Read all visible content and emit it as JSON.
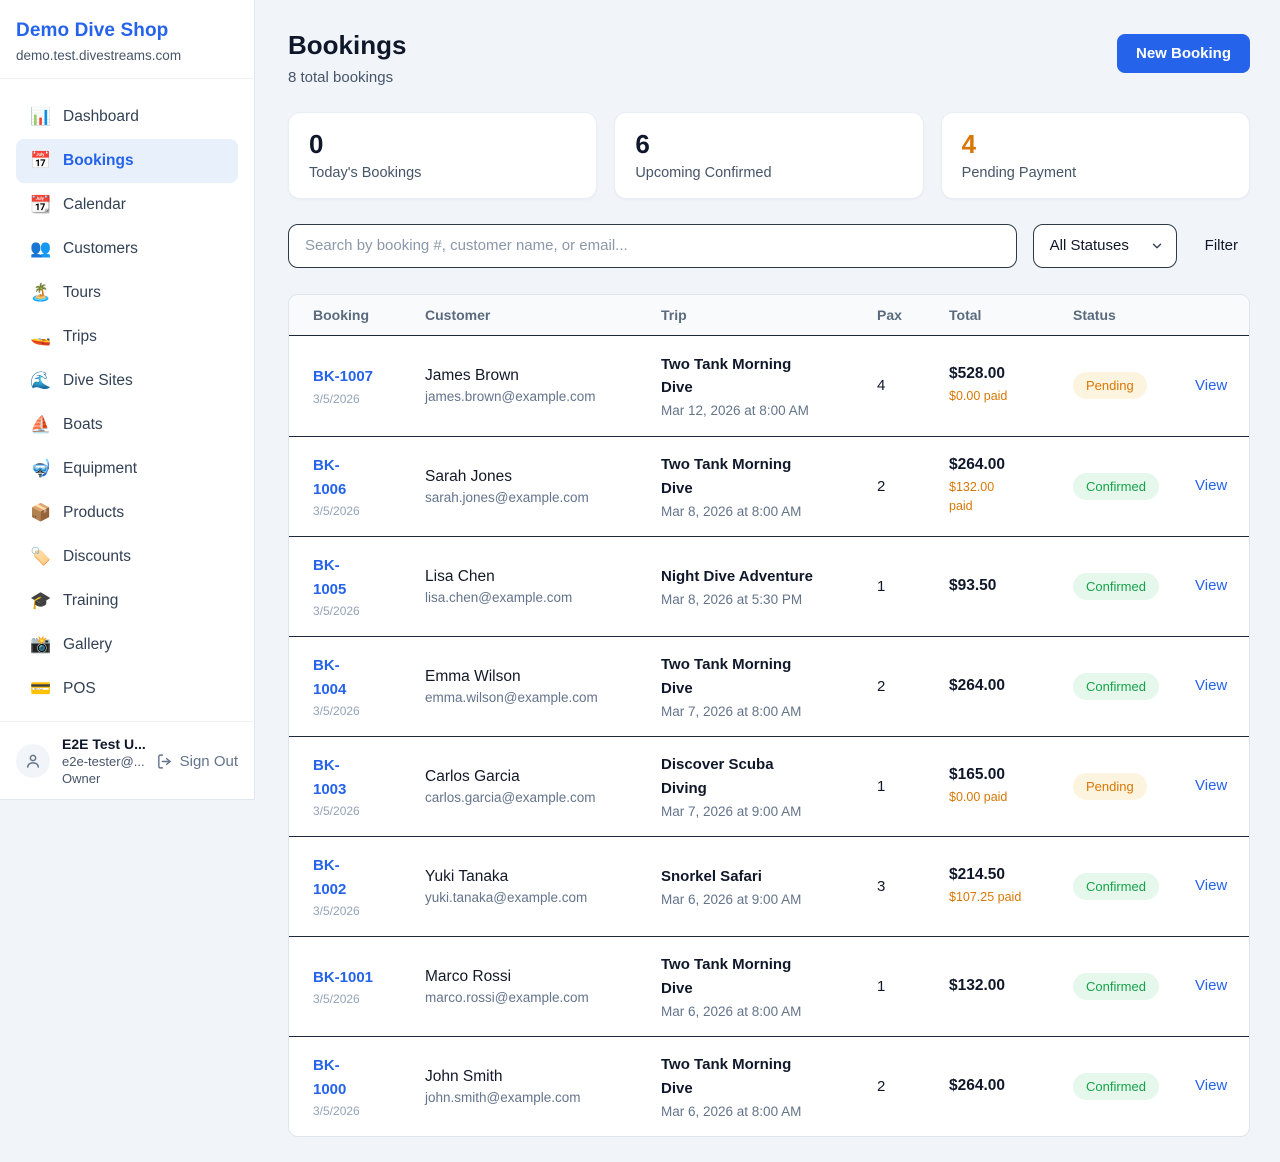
{
  "sidebar": {
    "brand": {
      "name": "Demo Dive Shop",
      "domain": "demo.test.divestreams.com"
    },
    "nav": [
      {
        "icon": "bar-chart-icon",
        "emoji": "📊",
        "label": "Dashboard",
        "active": false
      },
      {
        "icon": "calendar-icon",
        "emoji": "📅",
        "label": "Bookings",
        "active": true
      },
      {
        "icon": "tear-off-calendar-icon",
        "emoji": "📆",
        "label": "Calendar",
        "active": false
      },
      {
        "icon": "people-icon",
        "emoji": "👥",
        "label": "Customers",
        "active": false
      },
      {
        "icon": "island-icon",
        "emoji": "🏝️",
        "label": "Tours",
        "active": false
      },
      {
        "icon": "speedboat-icon",
        "emoji": "🚤",
        "label": "Trips",
        "active": false
      },
      {
        "icon": "wave-icon",
        "emoji": "🌊",
        "label": "Dive Sites",
        "active": false
      },
      {
        "icon": "sailboat-icon",
        "emoji": "⛵",
        "label": "Boats",
        "active": false
      },
      {
        "icon": "diving-mask-icon",
        "emoji": "🤿",
        "label": "Equipment",
        "active": false
      },
      {
        "icon": "package-icon",
        "emoji": "📦",
        "label": "Products",
        "active": false
      },
      {
        "icon": "tag-icon",
        "emoji": "🏷️",
        "label": "Discounts",
        "active": false
      },
      {
        "icon": "graduation-cap-icon",
        "emoji": "🎓",
        "label": "Training",
        "active": false
      },
      {
        "icon": "camera-icon",
        "emoji": "📸",
        "label": "Gallery",
        "active": false
      },
      {
        "icon": "credit-card-icon",
        "emoji": "💳",
        "label": "POS",
        "active": false
      }
    ],
    "user": {
      "name": "E2E Test U...",
      "email": "e2e-tester@...",
      "role": "Owner",
      "sign_out_label": "Sign Out"
    }
  },
  "header": {
    "title": "Bookings",
    "subtitle": "8 total bookings",
    "new_booking_label": "New Booking"
  },
  "stats": [
    {
      "value": "0",
      "label": "Today's Bookings",
      "value_color": "#0f172a"
    },
    {
      "value": "6",
      "label": "Upcoming Confirmed",
      "value_color": "#0f172a"
    },
    {
      "value": "4",
      "label": "Pending Payment",
      "value_color": "#d97706"
    }
  ],
  "filters": {
    "search_placeholder": "Search by booking #, customer name, or email...",
    "status_selected": "All Statuses",
    "filter_label": "Filter"
  },
  "table": {
    "columns": [
      "Booking",
      "Customer",
      "Trip",
      "Pax",
      "Total",
      "Status",
      ""
    ],
    "status_styles": {
      "Pending": {
        "bg": "#fdf4df",
        "text": "#d97706"
      },
      "Confirmed": {
        "bg": "#e6f7ec",
        "text": "#16a34a"
      }
    },
    "action_label": "View",
    "rows": [
      {
        "id": "BK-1007",
        "date": "3/5/2026",
        "customer": "James Brown",
        "email": "james.brown@example.com",
        "trip": "Two Tank Morning\nDive",
        "trip_datetime": "Mar 12, 2026 at 8:00 AM",
        "pax": "4",
        "total": "$528.00",
        "paid": "$0.00 paid",
        "status": "Pending"
      },
      {
        "id": "BK-\n1006",
        "date": "3/5/2026",
        "customer": "Sarah Jones",
        "email": "sarah.jones@example.com",
        "trip": "Two Tank Morning\nDive",
        "trip_datetime": "Mar 8, 2026 at 8:00 AM",
        "pax": "2",
        "total": "$264.00",
        "paid": "$132.00\npaid",
        "status": "Confirmed"
      },
      {
        "id": "BK-\n1005",
        "date": "3/5/2026",
        "customer": "Lisa Chen",
        "email": "lisa.chen@example.com",
        "trip": "Night Dive Adventure",
        "trip_datetime": "Mar 8, 2026 at 5:30 PM",
        "pax": "1",
        "total": "$93.50",
        "paid": "",
        "status": "Confirmed"
      },
      {
        "id": "BK-\n1004",
        "date": "3/5/2026",
        "customer": "Emma Wilson",
        "email": "emma.wilson@example.com",
        "trip": "Two Tank Morning\nDive",
        "trip_datetime": "Mar 7, 2026 at 8:00 AM",
        "pax": "2",
        "total": "$264.00",
        "paid": "",
        "status": "Confirmed"
      },
      {
        "id": "BK-\n1003",
        "date": "3/5/2026",
        "customer": "Carlos Garcia",
        "email": "carlos.garcia@example.com",
        "trip": "Discover Scuba\nDiving",
        "trip_datetime": "Mar 7, 2026 at 9:00 AM",
        "pax": "1",
        "total": "$165.00",
        "paid": "$0.00 paid",
        "status": "Pending"
      },
      {
        "id": "BK-\n1002",
        "date": "3/5/2026",
        "customer": "Yuki Tanaka",
        "email": "yuki.tanaka@example.com",
        "trip": "Snorkel Safari",
        "trip_datetime": "Mar 6, 2026 at 9:00 AM",
        "pax": "3",
        "total": "$214.50",
        "paid": "$107.25 paid",
        "status": "Confirmed"
      },
      {
        "id": "BK-1001",
        "date": "3/5/2026",
        "customer": "Marco Rossi",
        "email": "marco.rossi@example.com",
        "trip": "Two Tank Morning\nDive",
        "trip_datetime": "Mar 6, 2026 at 8:00 AM",
        "pax": "1",
        "total": "$132.00",
        "paid": "",
        "status": "Confirmed"
      },
      {
        "id": "BK-\n1000",
        "date": "3/5/2026",
        "customer": "John Smith",
        "email": "john.smith@example.com",
        "trip": "Two Tank Morning\nDive",
        "trip_datetime": "Mar 6, 2026 at 8:00 AM",
        "pax": "2",
        "total": "$264.00",
        "paid": "",
        "status": "Confirmed"
      }
    ]
  },
  "colors": {
    "accent": "#2563eb",
    "pending": "#d97706",
    "confirmed": "#16a34a",
    "page_background": "#f1f5f9"
  }
}
